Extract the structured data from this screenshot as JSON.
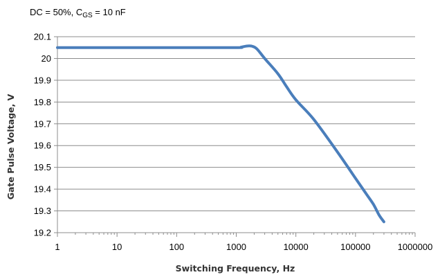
{
  "chart_data": {
    "type": "line",
    "annotation": {
      "prefix": "DC = 50%, C",
      "subscript": "GS",
      "suffix": " = 10 nF"
    },
    "xlabel": "Switching Frequency, Hz",
    "ylabel": "Gate Pulse Voltage, V",
    "x_scale": "log",
    "xlim": [
      1,
      1000000
    ],
    "ylim": [
      19.2,
      20.1
    ],
    "x_ticks": [
      1,
      10,
      100,
      1000,
      10000,
      100000,
      1000000
    ],
    "x_tick_labels": [
      "1",
      "10",
      "100",
      "1000",
      "10000",
      "100000",
      "1000000"
    ],
    "y_ticks": [
      19.2,
      19.3,
      19.4,
      19.5,
      19.6,
      19.7,
      19.8,
      19.9,
      20,
      20.1
    ],
    "y_tick_labels": [
      "19.2",
      "19.3",
      "19.4",
      "19.5",
      "19.6",
      "19.7",
      "19.8",
      "19.9",
      "20",
      "20.1"
    ],
    "grid": "horizontal",
    "legend": "none",
    "series": [
      {
        "color": "#4a7ebb",
        "x": [
          1,
          10,
          100,
          1000,
          1200,
          1500,
          1800,
          2200,
          3000,
          5000,
          7000,
          10000,
          20000,
          50000,
          100000,
          150000,
          200000,
          250000,
          300000
        ],
        "y": [
          20.05,
          20.05,
          20.05,
          20.05,
          20.052,
          20.057,
          20.057,
          20.045,
          20.0,
          19.93,
          19.87,
          19.81,
          19.72,
          19.57,
          19.45,
          19.38,
          19.33,
          19.28,
          19.25
        ]
      }
    ]
  }
}
